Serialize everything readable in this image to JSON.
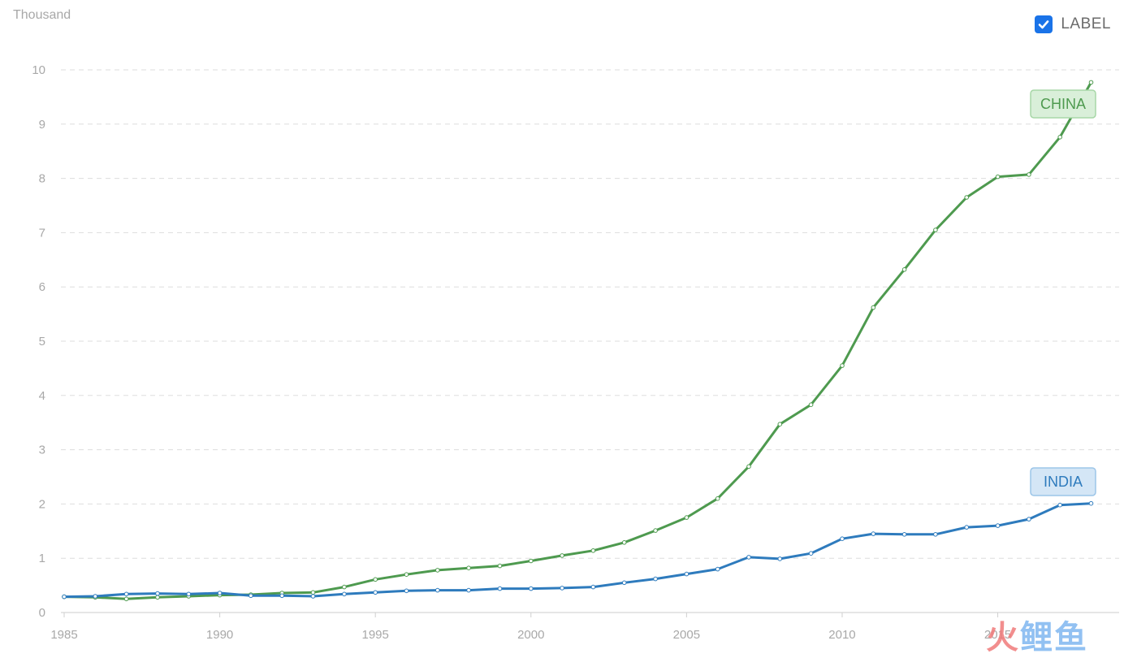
{
  "chart_data": {
    "type": "line",
    "unit_label": "Thousand",
    "toggle": {
      "label": "LABEL",
      "checked": true
    },
    "x": [
      1985,
      1986,
      1987,
      1988,
      1989,
      1990,
      1991,
      1992,
      1993,
      1994,
      1995,
      1996,
      1997,
      1998,
      1999,
      2000,
      2001,
      2002,
      2003,
      2004,
      2005,
      2006,
      2007,
      2008,
      2009,
      2010,
      2011,
      2012,
      2013,
      2014,
      2015,
      2016,
      2017,
      2018
    ],
    "xlim": [
      1985,
      2018.9
    ],
    "ylim": [
      0,
      10
    ],
    "x_ticks": [
      "1985",
      "1990",
      "1995",
      "2000",
      "2005",
      "2010",
      "2015"
    ],
    "y_ticks": [
      "0",
      "1",
      "2",
      "3",
      "4",
      "5",
      "6",
      "7",
      "8",
      "9",
      "10"
    ],
    "grid": true,
    "series": [
      {
        "name": "CHINA",
        "color": "#4e9a4f",
        "label_bg": "#d9efd9",
        "label_border": "#a7d7a7",
        "values": [
          0.29,
          0.28,
          0.25,
          0.28,
          0.3,
          0.32,
          0.33,
          0.36,
          0.37,
          0.47,
          0.61,
          0.7,
          0.78,
          0.82,
          0.86,
          0.95,
          1.05,
          1.14,
          1.29,
          1.51,
          1.75,
          2.1,
          2.69,
          3.47,
          3.83,
          4.55,
          5.62,
          6.32,
          7.05,
          7.65,
          8.03,
          8.07,
          8.76,
          9.77
        ]
      },
      {
        "name": "INDIA",
        "color": "#2e7bbd",
        "label_bg": "#d4e6f6",
        "label_border": "#9cc5e8",
        "values": [
          0.29,
          0.3,
          0.34,
          0.35,
          0.34,
          0.36,
          0.31,
          0.31,
          0.3,
          0.34,
          0.37,
          0.4,
          0.41,
          0.41,
          0.44,
          0.44,
          0.45,
          0.47,
          0.55,
          0.62,
          0.71,
          0.8,
          1.02,
          0.99,
          1.09,
          1.36,
          1.45,
          1.44,
          1.44,
          1.57,
          1.6,
          1.72,
          1.98,
          2.01
        ]
      }
    ]
  },
  "watermark": {
    "part1": "火",
    "part2": "鲤鱼"
  }
}
